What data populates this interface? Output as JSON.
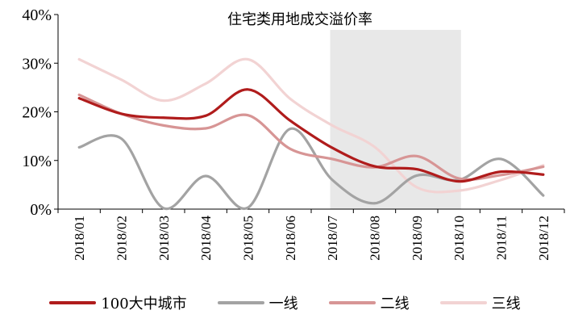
{
  "chart_data": {
    "type": "line",
    "title": "住宅类用地成交溢价率",
    "categories": [
      "2018/01",
      "2018/02",
      "2018/03",
      "2018/04",
      "2018/05",
      "2018/06",
      "2018/07",
      "2018/08",
      "2018/09",
      "2018/10",
      "2018/11",
      "2018/12"
    ],
    "y_ticks": [
      "0%",
      "10%",
      "20%",
      "30%",
      "40%"
    ],
    "ylim": [
      0,
      40
    ],
    "y_unit": "%",
    "grid": false,
    "legend_position": "bottom",
    "highlight_band": {
      "from": "2018/07",
      "to": "2018/10",
      "color": "#e8e8e8"
    },
    "series": [
      {
        "name": "100大中城市",
        "color": "#b01c1c",
        "values": [
          22.8,
          19.6,
          18.8,
          19.2,
          24.6,
          18.2,
          12.6,
          8.8,
          8.2,
          5.7,
          7.7,
          7.1
        ]
      },
      {
        "name": "一线",
        "color": "#a3a3a3",
        "values": [
          12.7,
          14.5,
          0.2,
          6.8,
          0.3,
          16.5,
          6.0,
          1.2,
          6.9,
          6.0,
          10.3,
          2.8
        ]
      },
      {
        "name": "二线",
        "color": "#d79595",
        "values": [
          23.5,
          19.6,
          17.2,
          16.6,
          19.3,
          12.4,
          10.3,
          8.6,
          10.9,
          6.3,
          7.0,
          8.7
        ]
      },
      {
        "name": "三线",
        "color": "#f2d3d3",
        "values": [
          30.8,
          26.6,
          22.3,
          25.8,
          30.8,
          22.7,
          17.2,
          12.8,
          4.5,
          3.8,
          6.0,
          9.0
        ]
      }
    ]
  }
}
